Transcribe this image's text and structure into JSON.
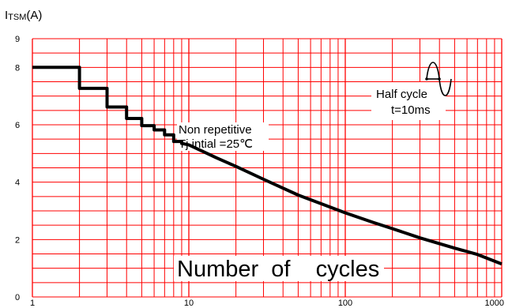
{
  "chart_data": {
    "type": "line",
    "ylabel_main": "I",
    "ylabel_sub": "TSM",
    "ylabel_unit": "(A)",
    "xlabel": "Number  of    cycles",
    "x_scale": "log",
    "xlim": [
      1,
      1000
    ],
    "ylim": [
      0,
      9
    ],
    "x_ticks": [
      {
        "value": 1,
        "label": "1"
      },
      {
        "value": 10,
        "label": "10"
      },
      {
        "value": 100,
        "label": "100"
      },
      {
        "value": 1000,
        "label": "1000"
      }
    ],
    "y_ticks": [
      {
        "value": 0,
        "label": "0"
      },
      {
        "value": 2,
        "label": "2"
      },
      {
        "value": 4,
        "label": "4"
      },
      {
        "value": 6,
        "label": "6"
      },
      {
        "value": 8,
        "label": "8"
      },
      {
        "value": 9,
        "label": "9"
      }
    ],
    "grid": true,
    "grid_color": "#ff0000",
    "line_color": "#000000",
    "series": [
      {
        "x": [
          1,
          2,
          2,
          3,
          3,
          4,
          4,
          5,
          5,
          6,
          6,
          7,
          7,
          8,
          8,
          9,
          9,
          10,
          15,
          20,
          30,
          50,
          70,
          100,
          150,
          200,
          300,
          500,
          700,
          1000
        ],
        "y": [
          8.0,
          8.0,
          7.27,
          7.27,
          6.62,
          6.62,
          6.22,
          6.22,
          5.97,
          5.97,
          5.82,
          5.82,
          5.65,
          5.65,
          5.42,
          5.42,
          5.35,
          5.3,
          4.85,
          4.55,
          4.1,
          3.55,
          3.25,
          2.93,
          2.6,
          2.38,
          2.06,
          1.7,
          1.48,
          1.15
        ]
      }
    ],
    "annotations": {
      "non_repetitive": "Non repetitive",
      "tj_initial": "Tj  intial =25℃",
      "half_cycle": "Half  cycle",
      "t_value": "t=10ms"
    }
  }
}
